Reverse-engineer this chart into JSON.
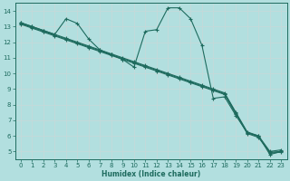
{
  "background_color": "#b2dfdf",
  "grid_color": "#c0dede",
  "line_color": "#1e6b5e",
  "xlabel": "Humidex (Indice chaleur)",
  "xlim": [
    -0.5,
    23.5
  ],
  "ylim": [
    4.5,
    14.5
  ],
  "xticks": [
    0,
    1,
    2,
    3,
    4,
    5,
    6,
    7,
    8,
    9,
    10,
    11,
    12,
    13,
    14,
    15,
    16,
    17,
    18,
    19,
    20,
    21,
    22,
    23
  ],
  "yticks": [
    5,
    6,
    7,
    8,
    9,
    10,
    11,
    12,
    13,
    14
  ],
  "lines": [
    {
      "x": [
        0,
        1,
        2,
        3,
        4,
        5,
        6,
        7,
        8,
        9,
        10,
        11,
        12,
        13,
        14,
        15,
        16,
        17,
        18,
        19,
        20,
        21,
        22,
        23
      ],
      "y": [
        13.25,
        13.0,
        12.75,
        12.5,
        12.25,
        12.0,
        11.75,
        11.5,
        11.25,
        11.0,
        10.75,
        10.5,
        10.25,
        10.0,
        9.75,
        9.5,
        9.25,
        9.0,
        8.75,
        7.5,
        6.25,
        6.0,
        5.0,
        5.1
      ]
    },
    {
      "x": [
        0,
        1,
        2,
        3,
        4,
        5,
        6,
        7,
        8,
        9,
        10,
        11,
        12,
        13,
        14,
        15,
        16,
        17,
        18,
        19,
        20,
        21,
        22,
        23
      ],
      "y": [
        13.2,
        12.95,
        12.7,
        12.45,
        12.2,
        11.95,
        11.7,
        11.45,
        11.2,
        10.95,
        10.7,
        10.45,
        10.2,
        9.95,
        9.7,
        9.45,
        9.2,
        8.95,
        8.7,
        7.45,
        6.2,
        5.95,
        4.95,
        5.0
      ]
    },
    {
      "x": [
        0,
        1,
        2,
        3,
        4,
        5,
        6,
        7,
        8,
        9,
        10,
        11,
        12,
        13,
        14,
        15,
        16,
        17,
        18,
        19,
        20,
        21,
        22,
        23
      ],
      "y": [
        13.15,
        12.9,
        12.65,
        12.4,
        12.15,
        11.9,
        11.65,
        11.4,
        11.15,
        10.9,
        10.65,
        10.4,
        10.15,
        9.9,
        9.65,
        9.4,
        9.15,
        8.9,
        8.65,
        7.4,
        6.15,
        5.9,
        4.9,
        4.95
      ]
    },
    {
      "x": [
        0,
        1,
        2,
        3,
        4,
        5,
        6,
        7,
        8,
        9,
        10,
        11,
        12,
        13,
        14,
        15,
        16,
        17,
        18,
        19,
        20,
        21,
        22,
        23
      ],
      "y": [
        13.25,
        13.0,
        12.75,
        12.5,
        13.5,
        13.2,
        12.2,
        11.5,
        11.2,
        10.9,
        10.4,
        12.7,
        12.8,
        14.2,
        14.2,
        13.5,
        11.8,
        8.4,
        8.5,
        7.3,
        6.2,
        6.0,
        4.8,
        5.0
      ]
    }
  ]
}
